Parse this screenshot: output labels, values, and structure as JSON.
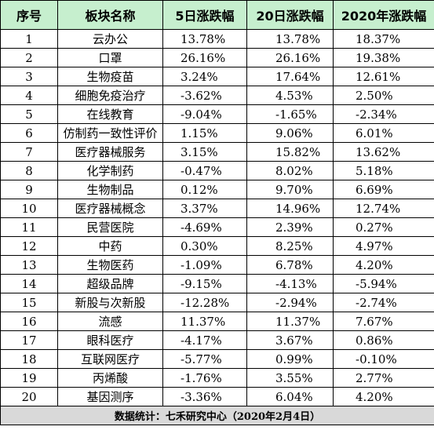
{
  "header": {
    "seq": "序号",
    "sector": "板块名称",
    "d5": "5日涨跌幅",
    "d20": "20日涨跌幅",
    "y2020": "2020年涨跌幅"
  },
  "rows": [
    {
      "seq": "1",
      "sector": "云办公",
      "d5": "13.78%",
      "d20": "13.78%",
      "y2020": "18.37%"
    },
    {
      "seq": "2",
      "sector": "口罩",
      "d5": "26.16%",
      "d20": "26.16%",
      "y2020": "19.38%"
    },
    {
      "seq": "3",
      "sector": "生物疫苗",
      "d5": "3.24%",
      "d20": "17.64%",
      "y2020": "12.61%"
    },
    {
      "seq": "4",
      "sector": "细胞免疫治疗",
      "d5": "-3.62%",
      "d20": "4.53%",
      "y2020": "2.50%"
    },
    {
      "seq": "5",
      "sector": "在线教育",
      "d5": "-9.04%",
      "d20": "-1.65%",
      "y2020": "-2.34%"
    },
    {
      "seq": "6",
      "sector": "仿制药一致性评价",
      "d5": "1.15%",
      "d20": "9.06%",
      "y2020": "6.01%"
    },
    {
      "seq": "7",
      "sector": "医疗器械服务",
      "d5": "3.15%",
      "d20": "15.82%",
      "y2020": "13.62%"
    },
    {
      "seq": "8",
      "sector": "化学制药",
      "d5": "-0.47%",
      "d20": "8.02%",
      "y2020": "5.18%"
    },
    {
      "seq": "9",
      "sector": "生物制品",
      "d5": "0.12%",
      "d20": "9.70%",
      "y2020": "6.69%"
    },
    {
      "seq": "10",
      "sector": "医疗器械概念",
      "d5": "3.37%",
      "d20": "14.96%",
      "y2020": "12.74%"
    },
    {
      "seq": "11",
      "sector": "民营医院",
      "d5": "-4.69%",
      "d20": "2.39%",
      "y2020": "0.27%"
    },
    {
      "seq": "12",
      "sector": "中药",
      "d5": "0.30%",
      "d20": "8.25%",
      "y2020": "4.97%"
    },
    {
      "seq": "13",
      "sector": "生物医药",
      "d5": "-1.09%",
      "d20": "6.78%",
      "y2020": "4.20%"
    },
    {
      "seq": "14",
      "sector": "超级品牌",
      "d5": "-9.15%",
      "d20": "-4.13%",
      "y2020": "-5.94%"
    },
    {
      "seq": "15",
      "sector": "新股与次新股",
      "d5": "-12.28%",
      "d20": "-2.94%",
      "y2020": "-2.74%"
    },
    {
      "seq": "16",
      "sector": "流感",
      "d5": "11.37%",
      "d20": "11.37%",
      "y2020": "7.67%"
    },
    {
      "seq": "17",
      "sector": "眼科医疗",
      "d5": "-4.17%",
      "d20": "3.67%",
      "y2020": "0.86%"
    },
    {
      "seq": "18",
      "sector": "互联网医疗",
      "d5": "-5.77%",
      "d20": "0.99%",
      "y2020": "-0.10%"
    },
    {
      "seq": "19",
      "sector": "丙烯酸",
      "d5": "-1.76%",
      "d20": "3.55%",
      "y2020": "2.77%"
    },
    {
      "seq": "20",
      "sector": "基因测序",
      "d5": "-3.36%",
      "d20": "6.04%",
      "y2020": "4.20%"
    }
  ],
  "footer": {
    "source": "数据统计：七禾研究中心（2020年2月4日）"
  },
  "colors": {
    "header_bg": "#c6efce",
    "footer_bg": "#d9d9d9"
  }
}
